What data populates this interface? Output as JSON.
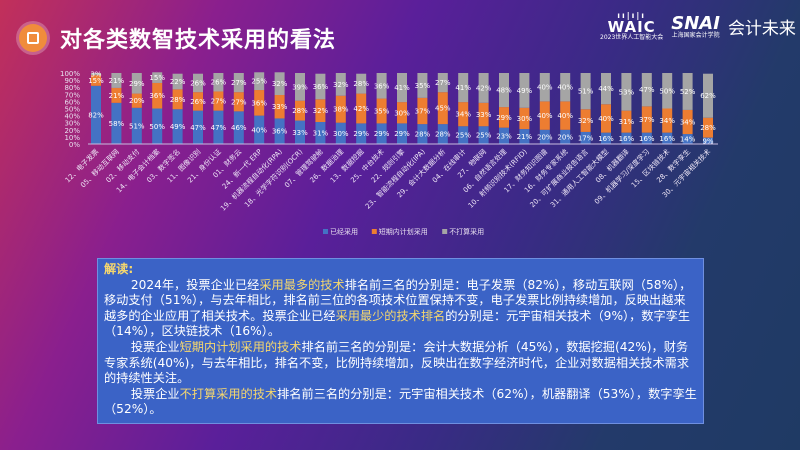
{
  "header": {
    "title": "对各类数智技术采用的看法",
    "logos": {
      "waic": "WAIC",
      "waic_sub": "2023世界人工智能大会",
      "snai": "SNAI",
      "snai_sub": "上海国家会计学院",
      "slogan": "会计未来"
    }
  },
  "colors": {
    "adopted": "#4472c4",
    "planned": "#ed7d31",
    "not_planned": "#a5a5a5"
  },
  "chart_data": {
    "type": "bar",
    "stacked": true,
    "orientation": "vertical",
    "ylim": [
      0,
      100
    ],
    "yticks": [
      "0%",
      "10%",
      "20%",
      "30%",
      "40%",
      "50%",
      "60%",
      "70%",
      "80%",
      "90%",
      "100%"
    ],
    "legend_position": "bottom",
    "categories": [
      "12、电子发票",
      "05、移动互联网",
      "02、移动支付",
      "14、电子会计档案",
      "03、数字签名",
      "11、图像识别",
      "21、身份认证",
      "01、财务云",
      "24、新一代 ERP",
      "19、机器流程自动化(RPA)",
      "18、光学字符识别(OCR)",
      "07、管理驾驶舱",
      "26、数据治理",
      "13、数据挖掘",
      "25、中台技术",
      "22、规则引擎",
      "23、智能流程自动化(IPA)",
      "29、会计大数据分析",
      "04、在线审计",
      "27、物联网",
      "06、自然语言处理",
      "10、射频识别技术(RFID)",
      "17、财务知识图谱",
      "16、财务专家系统",
      "20、可扩展商业报告语言",
      "31、通用人工智能大模型",
      "08、机器翻译",
      "09、机器学习/深度学习",
      "15、区块链技术",
      "28、数字孪生",
      "30、元宇宙相关技术"
    ],
    "series": [
      {
        "name": "已经采用",
        "values": [
          82,
          58,
          51,
          50,
          49,
          47,
          47,
          46,
          40,
          36,
          33,
          31,
          30,
          29,
          29,
          29,
          28,
          28,
          25,
          25,
          23,
          21,
          20,
          20,
          17,
          16,
          16,
          16,
          16,
          14,
          9
        ]
      },
      {
        "name": "短期内计划采用",
        "values": [
          15,
          21,
          20,
          36,
          28,
          26,
          27,
          27,
          36,
          33,
          28,
          32,
          38,
          42,
          35,
          30,
          37,
          45,
          34,
          33,
          29,
          30,
          40,
          40,
          32,
          40,
          31,
          37,
          34,
          34,
          28
        ]
      },
      {
        "name": "不打算采用",
        "values": [
          3,
          21,
          29,
          15,
          22,
          26,
          26,
          27,
          25,
          32,
          39,
          36,
          32,
          28,
          36,
          41,
          35,
          27,
          41,
          42,
          48,
          49,
          40,
          40,
          51,
          44,
          53,
          47,
          50,
          52,
          62
        ]
      }
    ]
  },
  "analysis": {
    "heading": "解读:",
    "paragraphs": [
      [
        {
          "t": "2024年，投票企业已经"
        },
        {
          "t": "采用最多的技术",
          "h": true
        },
        {
          "t": "排名前三名的分别是：电子发票（82%），移动互联网（58%），移动支付（51%），与去年相比，排名前三位的各项技术位置保持不变，电子发票比例持续增加，反映出越来越多的企业应用了相关技术。投票企业已经"
        },
        {
          "t": "采用最少的技术排名",
          "h": true
        },
        {
          "t": "的分别是：元宇宙相关技术（9%），数字孪生（14%），区块链技术（16%）。"
        }
      ],
      [
        {
          "t": "投票企业"
        },
        {
          "t": "短期内计划采用的技术",
          "h": true
        },
        {
          "t": "排名前三名的分别是：会计大数据分析（45%），数据挖掘(42%)，财务专家系统(40%)，与去年相比，排名不变，比例持续增加，反映出在数字经济时代，企业对数据相关技术需求的持续性关注。"
        }
      ],
      [
        {
          "t": "投票企业"
        },
        {
          "t": "不打算采用的技术",
          "h": true
        },
        {
          "t": "排名前三名的分别是：元宇宙相关技术（62%），机器翻译（53%），数字孪生（52%）。"
        }
      ]
    ]
  }
}
